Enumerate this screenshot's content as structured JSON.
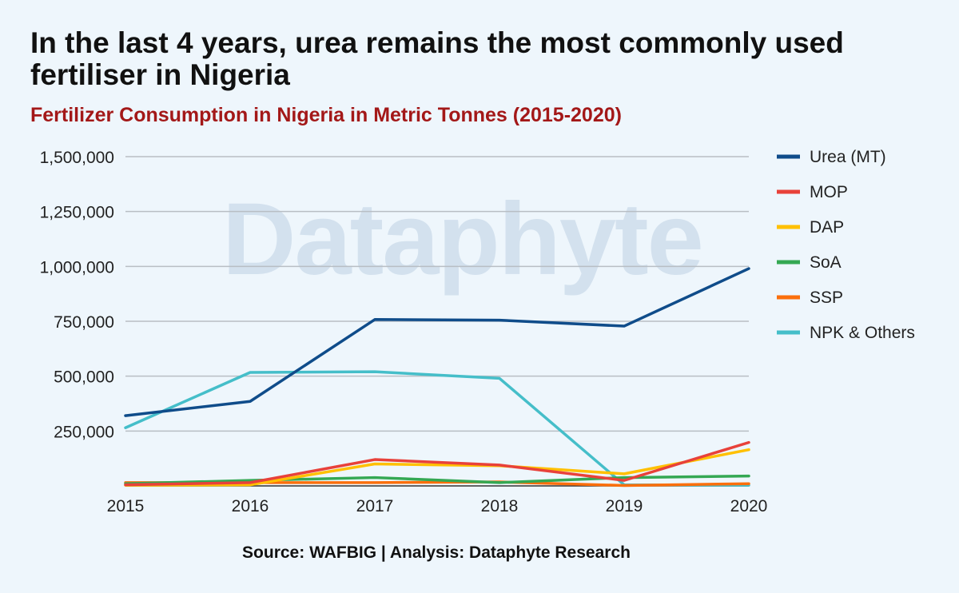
{
  "header": {
    "title": "In the last 4 years, urea remains the most commonly used fertiliser in Nigeria",
    "subtitle": "Fertilizer Consumption in Nigeria in Metric Tonnes (2015-2020)"
  },
  "watermark": "Dataphyte",
  "footer": {
    "source": "Source: WAFBIG | Analysis: Dataphyte Research"
  },
  "chart_data": {
    "type": "line",
    "x": [
      "2015",
      "2016",
      "2017",
      "2018",
      "2019",
      "2020"
    ],
    "ylim": [
      0,
      1500000
    ],
    "yticks": [
      250000,
      500000,
      750000,
      1000000,
      1250000,
      1500000
    ],
    "ytick_labels": [
      "250,000",
      "500,000",
      "750,000",
      "1,000,000",
      "1,250,000",
      "1,500,000"
    ],
    "grid": true,
    "legend_position": "right",
    "series": [
      {
        "name": "Urea (MT)",
        "color": "#0f4c8a",
        "values": [
          320000,
          385000,
          758000,
          755000,
          728000,
          990000
        ]
      },
      {
        "name": "MOP",
        "color": "#e8413a",
        "values": [
          5000,
          15000,
          120000,
          95000,
          25000,
          198000
        ]
      },
      {
        "name": "DAP",
        "color": "#ffc000",
        "values": [
          3000,
          5000,
          100000,
          92000,
          55000,
          165000
        ]
      },
      {
        "name": "SoA",
        "color": "#34a853",
        "values": [
          10000,
          25000,
          38000,
          15000,
          38000,
          45000
        ]
      },
      {
        "name": "SSP",
        "color": "#fb6f0c",
        "values": [
          15000,
          15000,
          15000,
          18000,
          2000,
          10000
        ]
      },
      {
        "name": "NPK & Others",
        "color": "#45bec9",
        "values": [
          265000,
          517000,
          520000,
          490000,
          5000,
          3000
        ]
      }
    ]
  }
}
